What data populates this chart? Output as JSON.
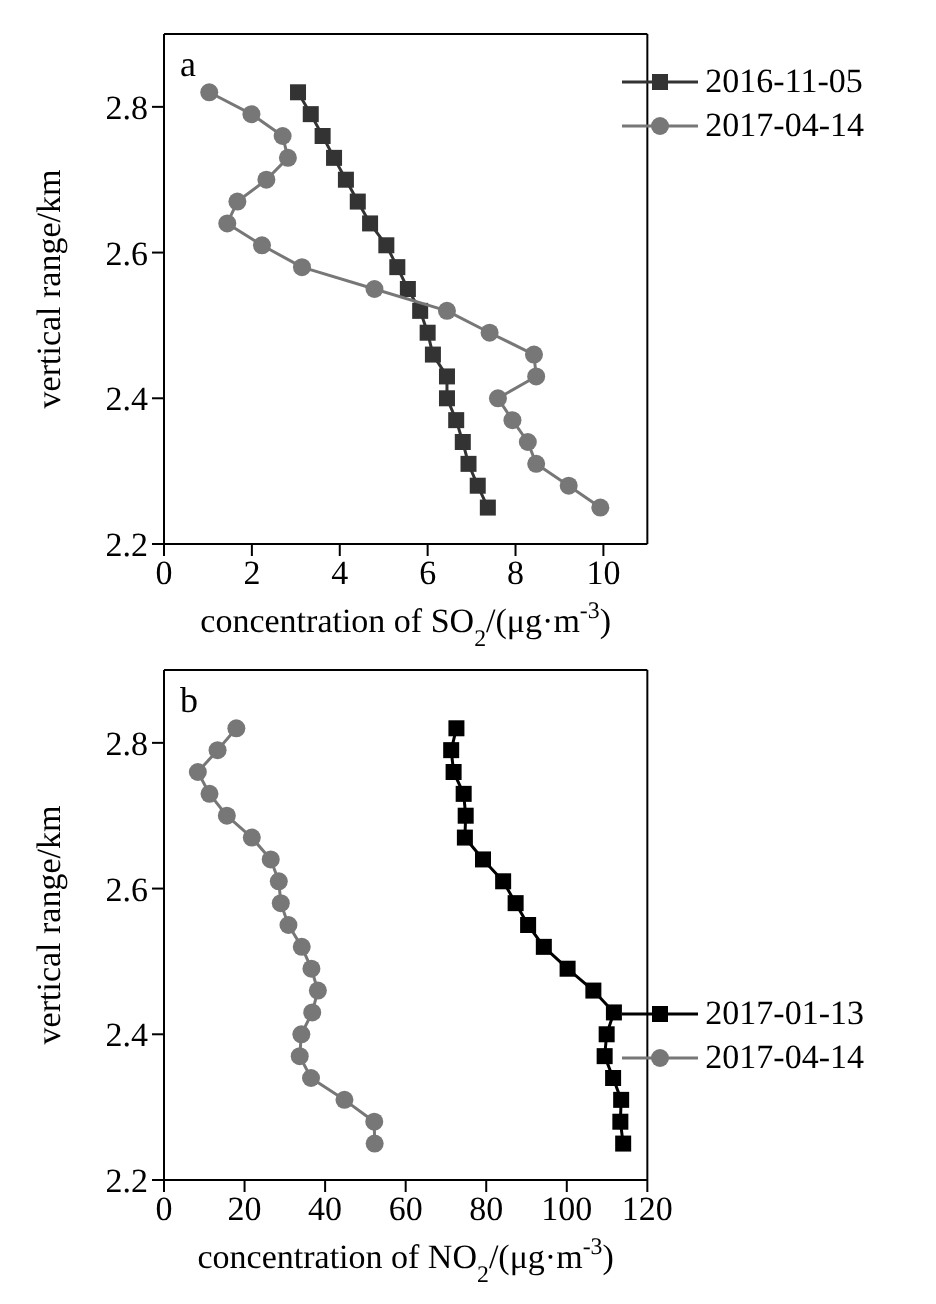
{
  "chart_data": [
    {
      "type": "line",
      "xlabel": "concentration of SO$_{2}$/(μg·m$^{-3}$)",
      "ylabel": "vertical range/km",
      "annotations": [
        "a"
      ],
      "xlim": [
        0,
        11
      ],
      "xticks": [
        0,
        2,
        4,
        6,
        8,
        10
      ],
      "ylim": [
        2.2,
        2.9
      ],
      "yticks": [
        2.2,
        2.4,
        2.6,
        2.8
      ],
      "legend": "top right",
      "grid": false,
      "line_style": "solid",
      "series": [
        {
          "name": "2016-11-05",
          "color": "#333333",
          "marker": "square",
          "x": [
            3.05,
            3.34,
            3.61,
            3.87,
            4.14,
            4.41,
            4.69,
            5.06,
            5.31,
            5.55,
            5.83,
            6.0,
            6.12,
            6.44,
            6.44,
            6.65,
            6.8,
            6.93,
            7.14,
            7.37
          ],
          "values": [
            2.82,
            2.79,
            2.76,
            2.73,
            2.7,
            2.67,
            2.64,
            2.61,
            2.58,
            2.55,
            2.52,
            2.49,
            2.46,
            2.43,
            2.4,
            2.37,
            2.34,
            2.31,
            2.28,
            2.25
          ]
        },
        {
          "name": "2017-04-14",
          "color": "#777777",
          "marker": "circle",
          "x": [
            1.03,
            1.99,
            2.7,
            2.82,
            2.33,
            1.67,
            1.44,
            2.23,
            3.14,
            4.79,
            6.44,
            7.41,
            8.42,
            8.47,
            7.6,
            7.93,
            8.28,
            8.47,
            9.21,
            9.93
          ],
          "values": [
            2.82,
            2.79,
            2.76,
            2.73,
            2.7,
            2.67,
            2.64,
            2.61,
            2.58,
            2.55,
            2.52,
            2.49,
            2.46,
            2.43,
            2.4,
            2.37,
            2.34,
            2.31,
            2.28,
            2.25
          ]
        }
      ]
    },
    {
      "type": "line",
      "xlabel": "concentration of NO$_{2}$/(μg·m$^{-3}$)",
      "ylabel": "vertical range/km",
      "annotations": [
        "b"
      ],
      "xlim": [
        0,
        120
      ],
      "xticks": [
        0,
        20,
        40,
        60,
        80,
        100,
        120
      ],
      "ylim": [
        2.2,
        2.9
      ],
      "yticks": [
        2.2,
        2.4,
        2.6,
        2.8
      ],
      "legend": "right",
      "grid": false,
      "line_style": "solid",
      "series": [
        {
          "name": "2017-01-13",
          "color": "#000000",
          "marker": "square",
          "x": [
            72.6,
            71.3,
            71.9,
            74.4,
            74.9,
            74.7,
            79.2,
            84.2,
            87.3,
            90.4,
            94.3,
            100.2,
            106.6,
            111.7,
            109.9,
            109.4,
            111.5,
            113.5,
            113.3,
            114.0
          ],
          "values": [
            2.82,
            2.79,
            2.76,
            2.73,
            2.7,
            2.67,
            2.64,
            2.61,
            2.58,
            2.55,
            2.52,
            2.49,
            2.46,
            2.43,
            2.4,
            2.37,
            2.34,
            2.31,
            2.28,
            2.25
          ]
        },
        {
          "name": "2017-04-14",
          "color": "#777777",
          "marker": "circle",
          "x": [
            17.96,
            13.3,
            8.4,
            11.3,
            15.6,
            21.8,
            26.5,
            28.5,
            29.0,
            30.9,
            34.2,
            36.6,
            38.2,
            36.8,
            34.1,
            33.7,
            36.5,
            44.8,
            52.2,
            52.3
          ],
          "values": [
            2.82,
            2.79,
            2.76,
            2.73,
            2.7,
            2.67,
            2.64,
            2.61,
            2.58,
            2.55,
            2.52,
            2.49,
            2.46,
            2.43,
            2.4,
            2.37,
            2.34,
            2.31,
            2.28,
            2.25
          ]
        }
      ]
    }
  ]
}
